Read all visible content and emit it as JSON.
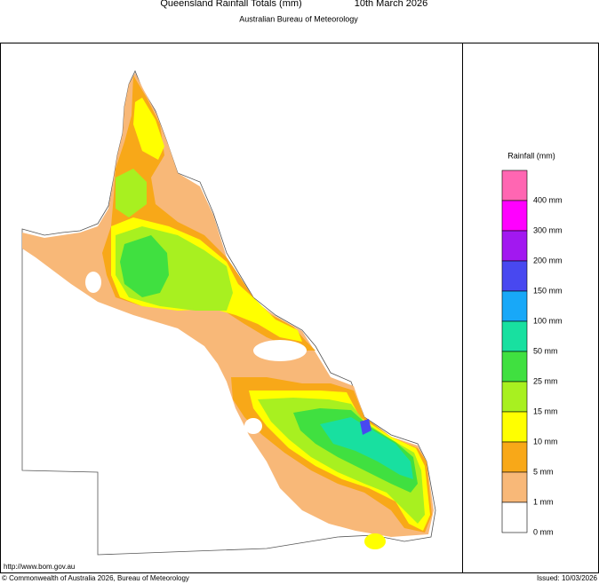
{
  "header": {
    "title": "Queensland Rainfall Totals (mm)",
    "date": "10th March 2026",
    "subtitle": "Australian Bureau of Meteorology"
  },
  "legend": {
    "title": "Rainfall (mm)",
    "items": [
      {
        "label": "400 mm",
        "color": "#ff66b2"
      },
      {
        "label": "300 mm",
        "color": "#ff00ff"
      },
      {
        "label": "200 mm",
        "color": "#a218f0"
      },
      {
        "label": "150 mm",
        "color": "#4848f0"
      },
      {
        "label": "100 mm",
        "color": "#18a8f8"
      },
      {
        "label": "50 mm",
        "color": "#18e0a0"
      },
      {
        "label": "25 mm",
        "color": "#40e040"
      },
      {
        "label": "15 mm",
        "color": "#a8f020"
      },
      {
        "label": "10 mm",
        "color": "#ffff00"
      },
      {
        "label": "5 mm",
        "color": "#f8a818"
      },
      {
        "label": "1 mm",
        "color": "#f8b878"
      },
      {
        "label": "0 mm",
        "color": "#ffffff"
      }
    ]
  },
  "footer": {
    "url": "http://www.bom.gov.au",
    "copyright": "© Commonwealth of Australia 2026, Bureau of Meteorology",
    "issued": "Issued: 10/03/2026"
  }
}
